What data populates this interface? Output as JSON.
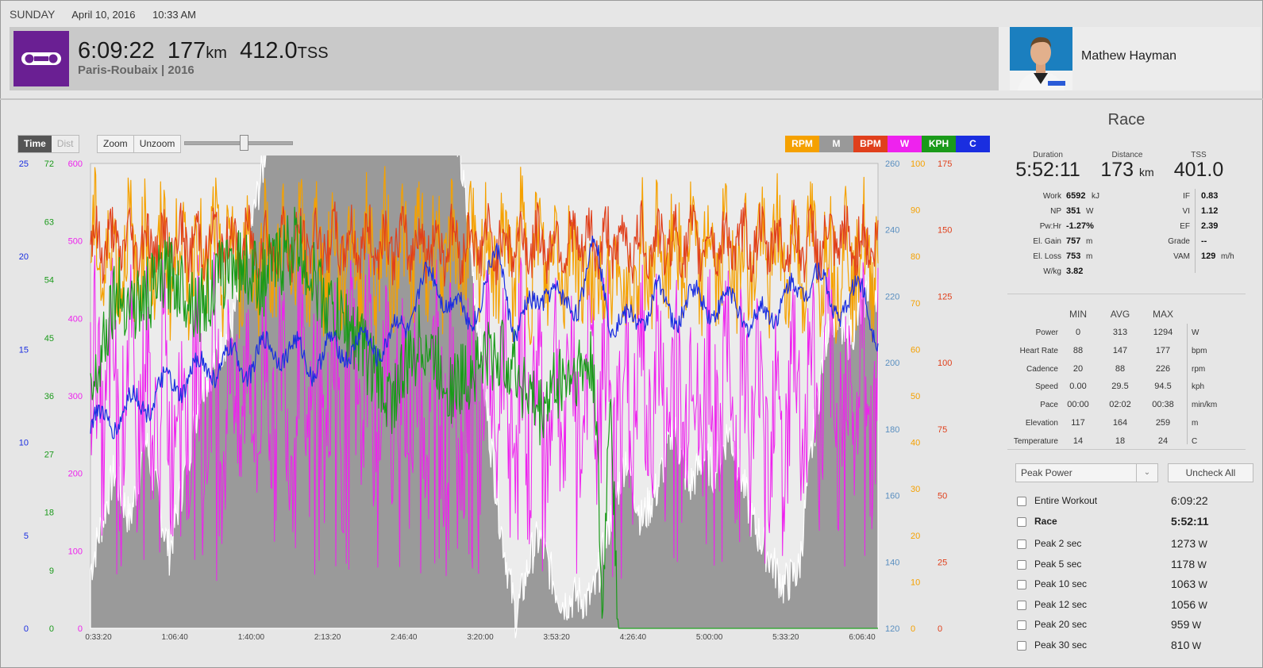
{
  "header": {
    "day": "SUNDAY",
    "date": "April 10, 2016",
    "time": "10:33 AM"
  },
  "workout": {
    "duration": "6:09:22",
    "distance": "177",
    "distance_unit": "km",
    "tss": "412.0",
    "tss_unit": "TSS",
    "event": "Paris-Roubaix | 2016"
  },
  "athlete": {
    "name": "Mathew Hayman"
  },
  "toolbar": {
    "time": "Time",
    "dist": "Dist",
    "zoom": "Zoom",
    "unzoom": "Unzoom"
  },
  "legend": [
    {
      "label": "RPM",
      "color": "#f5a100"
    },
    {
      "label": "M",
      "color": "#999999"
    },
    {
      "label": "BPM",
      "color": "#e0401c"
    },
    {
      "label": "W",
      "color": "#ee22ee"
    },
    {
      "label": "KPH",
      "color": "#1a9a1a"
    },
    {
      "label": "C",
      "color": "#1a2ee0"
    }
  ],
  "chart_data": {
    "type": "line",
    "x_ticks": [
      "0:33:20",
      "1:06:40",
      "1:40:00",
      "2:13:20",
      "2:46:40",
      "3:20:00",
      "3:53:20",
      "4:26:40",
      "5:00:00",
      "5:33:20",
      "6:06:40"
    ],
    "axes": {
      "blue": {
        "ticks": [
          "0",
          "5",
          "10",
          "15",
          "20",
          "25"
        ],
        "color": "#1a2ee0"
      },
      "green": {
        "ticks": [
          "0",
          "9",
          "18",
          "27",
          "36",
          "45",
          "54",
          "63",
          "72"
        ],
        "color": "#1a9a1a"
      },
      "magenta": {
        "ticks": [
          "0",
          "100",
          "200",
          "300",
          "400",
          "500",
          "600"
        ],
        "color": "#ee22ee"
      },
      "steel": {
        "ticks": [
          "120",
          "140",
          "160",
          "180",
          "200",
          "220",
          "240",
          "260"
        ],
        "color": "#5a8fc0"
      },
      "orange": {
        "ticks": [
          "0",
          "10",
          "20",
          "30",
          "40",
          "50",
          "60",
          "70",
          "80",
          "90",
          "100"
        ],
        "color": "#f5a100"
      },
      "red": {
        "ticks": [
          "0",
          "25",
          "50",
          "75",
          "100",
          "125",
          "150",
          "175"
        ],
        "color": "#e0401c"
      }
    },
    "series": [
      {
        "name": "M",
        "color": "#999999",
        "type": "area",
        "points": [
          [
            0,
            135
          ],
          [
            3,
            165
          ],
          [
            5,
            150
          ],
          [
            7,
            175
          ],
          [
            10,
            140
          ],
          [
            14,
            190
          ],
          [
            18,
            210
          ],
          [
            22,
            260
          ],
          [
            24,
            310
          ],
          [
            26,
            330
          ],
          [
            28,
            350
          ],
          [
            30,
            370
          ],
          [
            32,
            390
          ],
          [
            34,
            400
          ],
          [
            36,
            395
          ],
          [
            38,
            380
          ],
          [
            40,
            370
          ],
          [
            42,
            340
          ],
          [
            44,
            300
          ],
          [
            46,
            280
          ],
          [
            48,
            240
          ],
          [
            50,
            190
          ],
          [
            52,
            150
          ],
          [
            54,
            120
          ],
          [
            56,
            140
          ],
          [
            57,
            145
          ],
          [
            59,
            130
          ],
          [
            60,
            125
          ],
          [
            62,
            127
          ],
          [
            63,
            125
          ],
          [
            64,
            128
          ],
          [
            66,
            150
          ],
          [
            67,
            160
          ],
          [
            68,
            170
          ],
          [
            69,
            160
          ],
          [
            70,
            150
          ],
          [
            72,
            160
          ],
          [
            73,
            170
          ],
          [
            74,
            180
          ],
          [
            75,
            170
          ],
          [
            76,
            160
          ],
          [
            77,
            165
          ],
          [
            78,
            170
          ],
          [
            79,
            165
          ],
          [
            80,
            170
          ],
          [
            81,
            178
          ],
          [
            82,
            170
          ],
          [
            83,
            160
          ],
          [
            84,
            150
          ],
          [
            86,
            140
          ],
          [
            88,
            130
          ],
          [
            90,
            135
          ],
          [
            91,
            160
          ],
          [
            92,
            180
          ],
          [
            93,
            200
          ],
          [
            94,
            215
          ],
          [
            95,
            210
          ],
          [
            96,
            205
          ],
          [
            98,
            215
          ],
          [
            99,
            225
          ],
          [
            100,
            220
          ]
        ]
      },
      {
        "name": "W",
        "color": "#ee22ee",
        "base": 300,
        "amp": 130,
        "min": 60,
        "max": 580
      },
      {
        "name": "RPM",
        "color": "#f5a100",
        "base": 80,
        "amp": 13,
        "min": 45,
        "max": 100
      },
      {
        "name": "BPM",
        "color": "#e0401c",
        "base": 145,
        "amp": 11,
        "min": 100,
        "max": 172
      },
      {
        "name": "KPH",
        "color": "#1a9a1a",
        "points": [
          [
            0,
            36
          ],
          [
            3,
            52
          ],
          [
            6,
            50
          ],
          [
            10,
            55
          ],
          [
            14,
            50
          ],
          [
            18,
            57
          ],
          [
            22,
            54
          ],
          [
            26,
            60
          ],
          [
            30,
            50
          ],
          [
            34,
            45
          ],
          [
            38,
            35
          ],
          [
            42,
            45
          ],
          [
            46,
            37
          ],
          [
            50,
            42
          ],
          [
            53,
            42
          ],
          [
            55,
            38
          ],
          [
            57,
            33
          ],
          [
            59,
            38
          ],
          [
            62,
            40
          ],
          [
            64,
            40
          ],
          [
            65,
            0
          ],
          [
            66,
            39
          ],
          [
            67,
            0
          ],
          [
            69,
            0
          ],
          [
            100,
            0
          ]
        ]
      },
      {
        "name": "C",
        "color": "#1a2ee0",
        "points": [
          [
            0,
            12
          ],
          [
            4,
            13
          ],
          [
            8,
            14
          ],
          [
            12,
            15
          ],
          [
            16,
            16
          ],
          [
            20,
            16
          ],
          [
            24,
            17
          ],
          [
            28,
            16
          ],
          [
            32,
            17
          ],
          [
            36,
            17
          ],
          [
            40,
            18
          ],
          [
            42,
            21
          ],
          [
            46,
            20
          ],
          [
            48,
            18
          ],
          [
            50,
            21
          ],
          [
            52,
            22
          ],
          [
            54,
            18
          ],
          [
            56,
            19
          ],
          [
            58,
            21
          ],
          [
            60,
            19
          ],
          [
            62,
            20
          ],
          [
            64,
            23
          ],
          [
            66,
            19
          ],
          [
            68,
            18
          ],
          [
            70,
            19
          ],
          [
            72,
            20
          ],
          [
            74,
            19
          ],
          [
            78,
            20
          ],
          [
            80,
            19
          ],
          [
            82,
            20
          ],
          [
            84,
            18
          ],
          [
            86,
            19
          ],
          [
            88,
            20
          ],
          [
            90,
            20
          ],
          [
            92,
            22
          ],
          [
            94,
            19
          ],
          [
            96,
            20
          ],
          [
            98,
            20
          ],
          [
            100,
            18
          ]
        ]
      }
    ]
  },
  "panel": {
    "title": "Race",
    "summary": [
      {
        "label": "Duration",
        "value": "5:52:11",
        "unit": ""
      },
      {
        "label": "Distance",
        "value": "173",
        "unit": "km"
      },
      {
        "label": "TSS",
        "value": "401.0",
        "unit": ""
      }
    ],
    "left_stats": [
      {
        "label": "Work",
        "value": "6592",
        "unit": "kJ"
      },
      {
        "label": "NP",
        "value": "351",
        "unit": "W"
      },
      {
        "label": "Pw:Hr",
        "value": "-1.27%",
        "unit": ""
      },
      {
        "label": "El. Gain",
        "value": "757",
        "unit": "m"
      },
      {
        "label": "El. Loss",
        "value": "753",
        "unit": "m"
      },
      {
        "label": "W/kg",
        "value": "3.82",
        "unit": ""
      }
    ],
    "right_stats": [
      {
        "label": "IF",
        "value": "0.83",
        "unit": ""
      },
      {
        "label": "VI",
        "value": "1.12",
        "unit": ""
      },
      {
        "label": "EF",
        "value": "2.39",
        "unit": ""
      },
      {
        "label": "Grade",
        "value": "--",
        "unit": ""
      },
      {
        "label": "VAM",
        "value": "129",
        "unit": "m/h"
      }
    ],
    "table_headers": [
      "MIN",
      "AVG",
      "MAX"
    ],
    "table": [
      {
        "label": "Power",
        "min": "0",
        "avg": "313",
        "max": "1294",
        "unit": "W"
      },
      {
        "label": "Heart Rate",
        "min": "88",
        "avg": "147",
        "max": "177",
        "unit": "bpm"
      },
      {
        "label": "Cadence",
        "min": "20",
        "avg": "88",
        "max": "226",
        "unit": "rpm"
      },
      {
        "label": "Speed",
        "min": "0.00",
        "avg": "29.5",
        "max": "94.5",
        "unit": "kph"
      },
      {
        "label": "Pace",
        "min": "00:00",
        "avg": "02:02",
        "max": "00:38",
        "unit": "min/km"
      },
      {
        "label": "Elevation",
        "min": "117",
        "avg": "164",
        "max": "259",
        "unit": "m"
      },
      {
        "label": "Temperature",
        "min": "14",
        "avg": "18",
        "max": "24",
        "unit": "C"
      }
    ],
    "dropdown": "Peak Power",
    "uncheck_all": "Uncheck All",
    "peaks": [
      {
        "label": "Entire Workout",
        "value": "6:09:22",
        "unit": "",
        "bold": false
      },
      {
        "label": "Race",
        "value": "5:52:11",
        "unit": "",
        "bold": true
      },
      {
        "label": "Peak 2 sec",
        "value": "1273",
        "unit": "W",
        "bold": false
      },
      {
        "label": "Peak 5 sec",
        "value": "1178",
        "unit": "W",
        "bold": false
      },
      {
        "label": "Peak 10 sec",
        "value": "1063",
        "unit": "W",
        "bold": false
      },
      {
        "label": "Peak 12 sec",
        "value": "1056",
        "unit": "W",
        "bold": false
      },
      {
        "label": "Peak 20 sec",
        "value": "959",
        "unit": "W",
        "bold": false
      },
      {
        "label": "Peak 30 sec",
        "value": "810",
        "unit": "W",
        "bold": false
      }
    ]
  }
}
